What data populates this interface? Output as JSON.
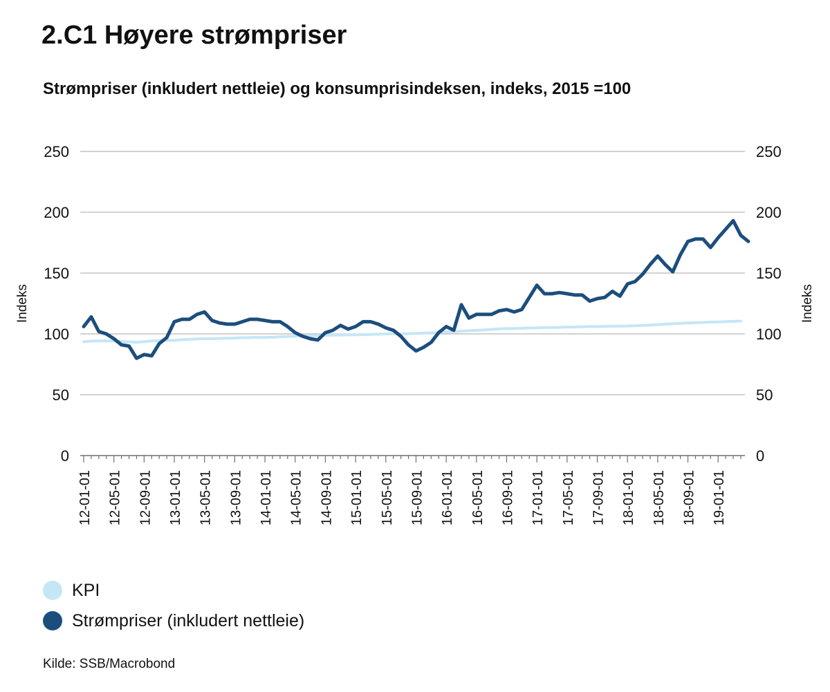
{
  "chart_data": {
    "type": "line",
    "title": "2.C1 Høyere strømpriser",
    "subtitle": "Strømpriser (inkludert nettleie) og konsumprisindeksen, indeks, 2015 =100",
    "ylabel_left": "Indeks",
    "ylabel_right": "Indeks",
    "ylim": [
      0,
      250
    ],
    "yticks": [
      0,
      50,
      100,
      150,
      200,
      250
    ],
    "grid": true,
    "dual_axis": true,
    "legend_position": "bottom-left",
    "x_tick_labels": [
      "12-01-01",
      "12-05-01",
      "12-09-01",
      "13-01-01",
      "13-05-01",
      "13-09-01",
      "14-01-01",
      "14-05-01",
      "14-09-01",
      "15-01-01",
      "15-05-01",
      "15-09-01",
      "16-01-01",
      "16-05-01",
      "16-09-01",
      "17-01-01",
      "17-05-01",
      "17-09-01",
      "18-01-01",
      "18-05-01",
      "18-09-01",
      "19-01-01"
    ],
    "x_start": "2012-01",
    "x_frequency": "monthly",
    "series": [
      {
        "name": "KPI",
        "color": "#c5e6f5",
        "values": [
          93.5,
          94.1,
          94.2,
          94.3,
          94.2,
          93.8,
          93.4,
          93.1,
          93.6,
          94.2,
          94.5,
          94.6,
          94.8,
          95.2,
          95.5,
          95.9,
          96.1,
          96.0,
          96.3,
          96.5,
          96.6,
          96.9,
          97.0,
          97.1,
          97.1,
          97.3,
          97.6,
          97.9,
          98.1,
          98.3,
          98.4,
          98.6,
          98.8,
          99.0,
          99.1,
          99.2,
          99.2,
          99.4,
          99.6,
          99.8,
          100.0,
          100.1,
          100.0,
          100.2,
          100.4,
          100.7,
          100.9,
          101.1,
          101.5,
          101.9,
          102.2,
          102.6,
          102.9,
          103.3,
          103.7,
          104.1,
          104.4,
          104.4,
          104.6,
          104.9,
          105.0,
          105.2,
          105.3,
          105.4,
          105.6,
          105.7,
          105.9,
          106.0,
          106.0,
          106.2,
          106.3,
          106.4,
          106.5,
          106.7,
          107.0,
          107.3,
          107.6,
          108.0,
          108.3,
          108.7,
          108.9,
          109.2,
          109.4,
          109.7,
          109.8,
          110.1,
          110.3,
          110.5
        ]
      },
      {
        "name": "Strømpriser (inkludert nettleie)",
        "color": "#1c4e7d",
        "values": [
          106,
          114,
          102,
          100,
          96,
          91,
          90,
          80,
          83,
          82,
          92,
          97,
          110,
          112,
          112,
          116,
          118,
          111,
          109,
          108,
          108,
          110,
          112,
          112,
          111,
          110,
          110,
          106,
          101,
          98,
          96,
          95,
          101,
          103,
          107,
          104,
          106,
          110,
          110,
          108,
          105,
          103,
          98,
          91,
          86,
          89,
          93,
          101,
          106,
          103,
          124,
          113,
          116,
          116,
          116,
          119,
          120,
          118,
          120,
          130,
          140,
          133,
          133,
          134,
          133,
          132,
          132,
          127,
          129,
          130,
          135,
          131,
          141,
          143,
          149,
          157,
          164,
          157,
          151,
          165,
          176,
          178,
          178,
          171,
          179,
          186,
          193,
          181,
          176
        ]
      }
    ]
  },
  "legend": {
    "items": [
      {
        "label": "KPI",
        "color": "#c5e6f5"
      },
      {
        "label": "Strømpriser (inkludert nettleie)",
        "color": "#1c4e7d"
      }
    ]
  },
  "source": "Kilde: SSB/Macrobond"
}
